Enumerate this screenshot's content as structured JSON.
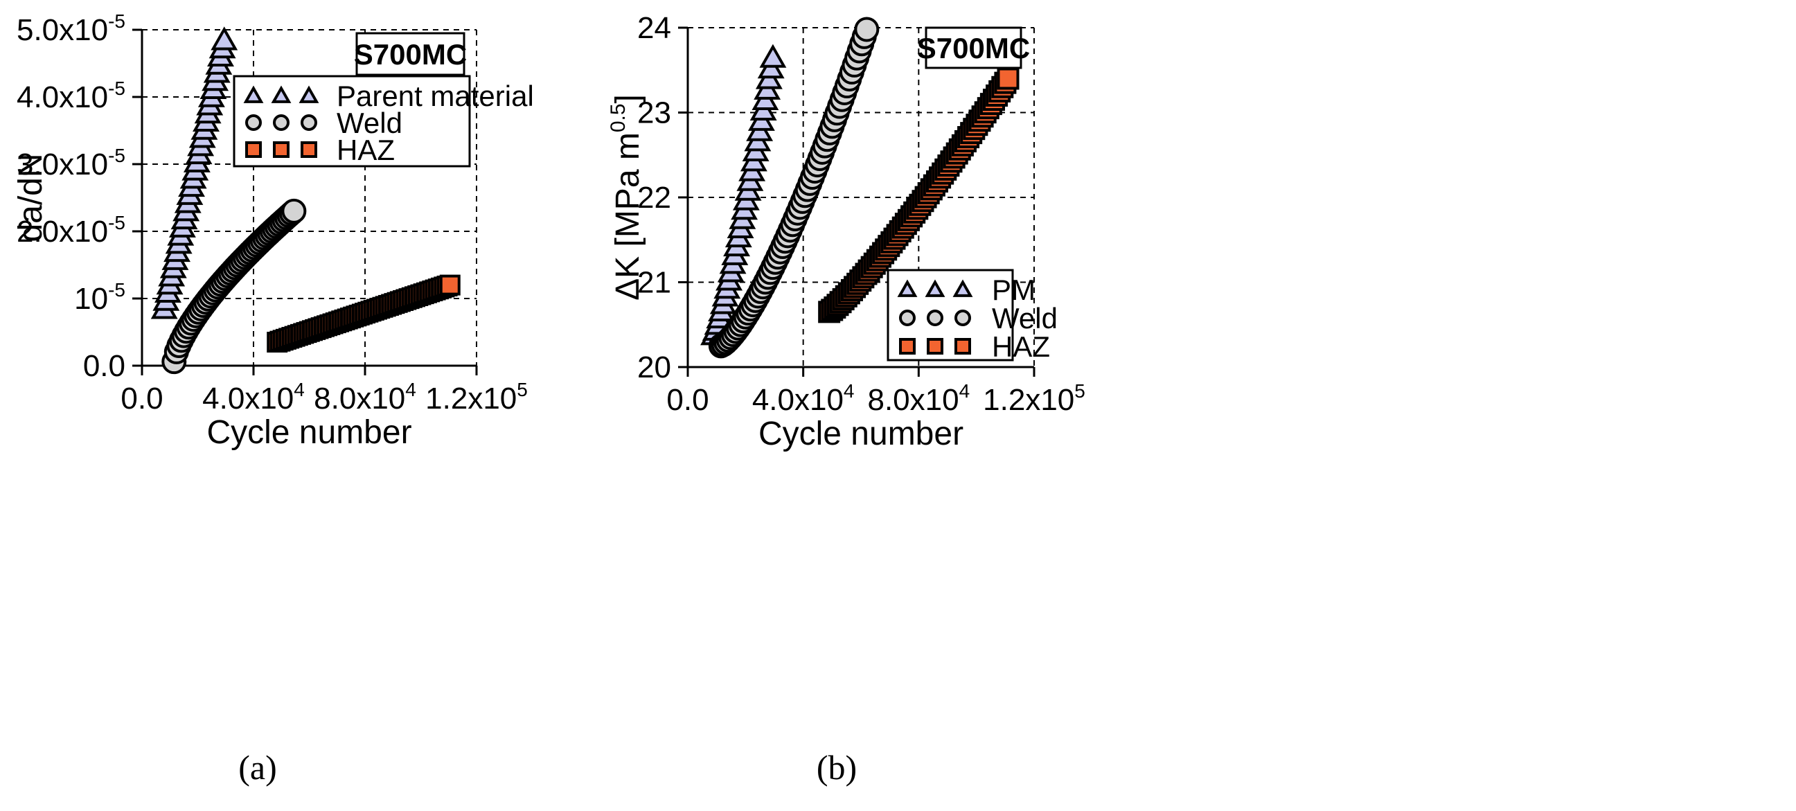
{
  "chart_data": [
    {
      "panel_label": "(a)",
      "type": "scatter",
      "title": "S700MC",
      "xlabel": "Cycle number",
      "ylabel": "da/dN",
      "xlim": [
        0,
        120000
      ],
      "ylim": [
        0,
        5e-05
      ],
      "grid": true,
      "legend_position": "top-right",
      "xticks": [
        {
          "value": 0,
          "mantissa": "0.0",
          "exp": ""
        },
        {
          "value": 40000,
          "mantissa": "4.0x10",
          "exp": "4"
        },
        {
          "value": 80000,
          "mantissa": "8.0x10",
          "exp": "4"
        },
        {
          "value": 120000,
          "mantissa": "1.2x10",
          "exp": "5"
        }
      ],
      "yticks": [
        {
          "value": 0,
          "mantissa": "0.0",
          "exp": ""
        },
        {
          "value": 1e-05,
          "mantissa": "10",
          "exp": "-5"
        },
        {
          "value": 2e-05,
          "mantissa": "2.0x10",
          "exp": "-5"
        },
        {
          "value": 3e-05,
          "mantissa": "3.0x10",
          "exp": "-5"
        },
        {
          "value": 4e-05,
          "mantissa": "4.0x10",
          "exp": "-5"
        },
        {
          "value": 5e-05,
          "mantissa": "5.0x10",
          "exp": "-5"
        }
      ],
      "series": [
        {
          "name": "Parent material",
          "marker": "triangle",
          "color": "#c6c8f0",
          "x_start": 8000,
          "x_end": 29500,
          "y_start": 8.5e-06,
          "y_end": 4.85e-05,
          "n": 34,
          "curve": 1.0
        },
        {
          "name": "Weld",
          "marker": "circle",
          "color": "#d4d4d4",
          "x_start": 11500,
          "x_end": 54500,
          "y_start": 6e-07,
          "y_end": 2.3e-05,
          "n": 50,
          "curve": 0.7
        },
        {
          "name": "HAZ",
          "marker": "square",
          "color": "#f26430",
          "x_start": 48500,
          "x_end": 110500,
          "y_start": 3.5e-06,
          "y_end": 1.2e-05,
          "n": 60,
          "curve": 1.0
        }
      ]
    },
    {
      "panel_label": "(b)",
      "type": "scatter",
      "title": "S700MC",
      "xlabel": "Cycle number",
      "ylabel": "ΔK [MPa m",
      "ylabel_sup": "0.5",
      "ylabel_end": "]",
      "xlim": [
        0,
        120000
      ],
      "ylim": [
        20,
        24
      ],
      "grid": true,
      "legend_position": "bottom-right",
      "xticks": [
        {
          "value": 0,
          "mantissa": "0.0",
          "exp": ""
        },
        {
          "value": 40000,
          "mantissa": "4.0x10",
          "exp": "4"
        },
        {
          "value": 80000,
          "mantissa": "8.0x10",
          "exp": "4"
        },
        {
          "value": 120000,
          "mantissa": "1.2x10",
          "exp": "5"
        }
      ],
      "yticks": [
        {
          "value": 20,
          "mantissa": "20",
          "exp": ""
        },
        {
          "value": 21,
          "mantissa": "21",
          "exp": ""
        },
        {
          "value": 22,
          "mantissa": "22",
          "exp": ""
        },
        {
          "value": 23,
          "mantissa": "23",
          "exp": ""
        },
        {
          "value": 24,
          "mantissa": "24",
          "exp": ""
        }
      ],
      "series": [
        {
          "name": "PM",
          "marker": "triangle",
          "color": "#c6c8f0",
          "x_start": 9000,
          "x_end": 29500,
          "y_start": 20.38,
          "y_end": 23.65,
          "n": 32,
          "curve": 1.2
        },
        {
          "name": "Weld",
          "marker": "circle",
          "color": "#d4d4d4",
          "x_start": 11500,
          "x_end": 62000,
          "y_start": 20.25,
          "y_end": 23.98,
          "n": 60,
          "curve": 1.35
        },
        {
          "name": "HAZ",
          "marker": "square",
          "color": "#f26430",
          "x_start": 49000,
          "x_end": 111000,
          "y_start": 20.65,
          "y_end": 23.4,
          "n": 64,
          "curve": 1.15
        }
      ]
    }
  ]
}
